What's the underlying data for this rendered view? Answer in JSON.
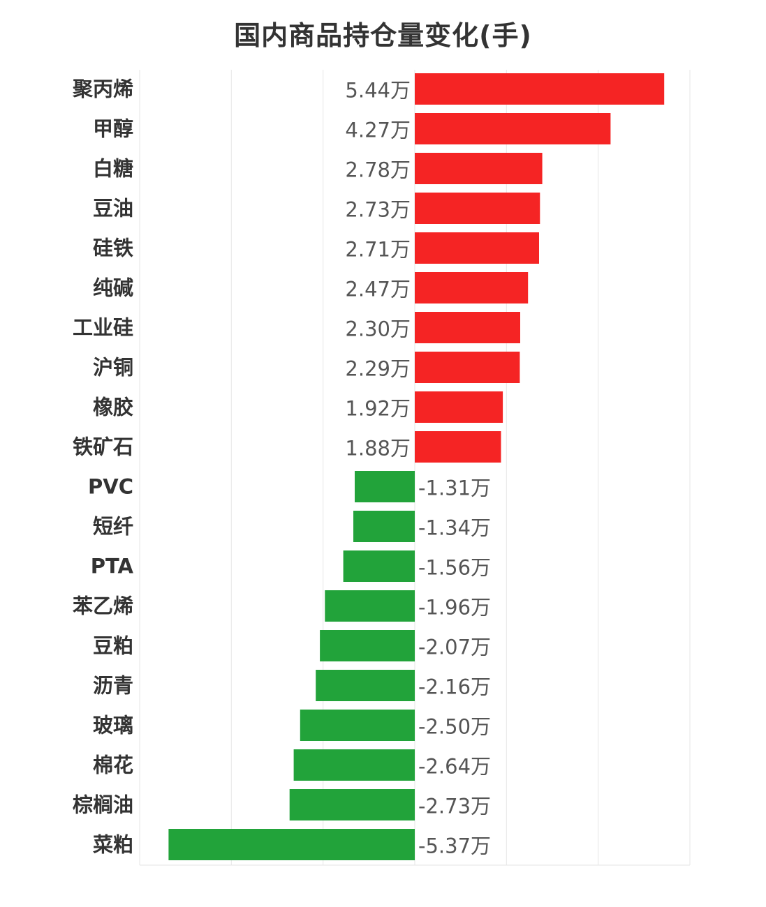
{
  "chart_data": {
    "type": "bar",
    "orientation": "horizontal",
    "title": "国内商品持仓量变化(手)",
    "categories": [
      "聚丙烯",
      "甲醇",
      "白糖",
      "豆油",
      "硅铁",
      "纯碱",
      "工业硅",
      "沪铜",
      "橡胶",
      "铁矿石",
      "PVC",
      "短纤",
      "PTA",
      "苯乙烯",
      "豆粕",
      "沥青",
      "玻璃",
      "棉花",
      "棕榈油",
      "菜粕"
    ],
    "values": [
      5.44,
      4.27,
      2.78,
      2.73,
      2.71,
      2.47,
      2.3,
      2.29,
      1.92,
      1.88,
      -1.31,
      -1.34,
      -1.56,
      -1.96,
      -2.07,
      -2.16,
      -2.5,
      -2.64,
      -2.73,
      -5.37
    ],
    "value_labels": [
      "5.44万",
      "4.27万",
      "2.78万",
      "2.73万",
      "2.71万",
      "2.47万",
      "2.30万",
      "2.29万",
      "1.92万",
      "1.88万",
      "-1.31万",
      "-1.34万",
      "-1.56万",
      "-1.96万",
      "-2.07万",
      "-2.16万",
      "-2.50万",
      "-2.64万",
      "-2.73万",
      "-5.37万"
    ],
    "unit": "万",
    "xlim": [
      -6,
      6
    ],
    "grid": true,
    "colors": {
      "positive": "#f52424",
      "negative": "#22a33a",
      "grid": "#e6e6e6",
      "category_text": "#333333",
      "value_text": "#555555"
    }
  }
}
